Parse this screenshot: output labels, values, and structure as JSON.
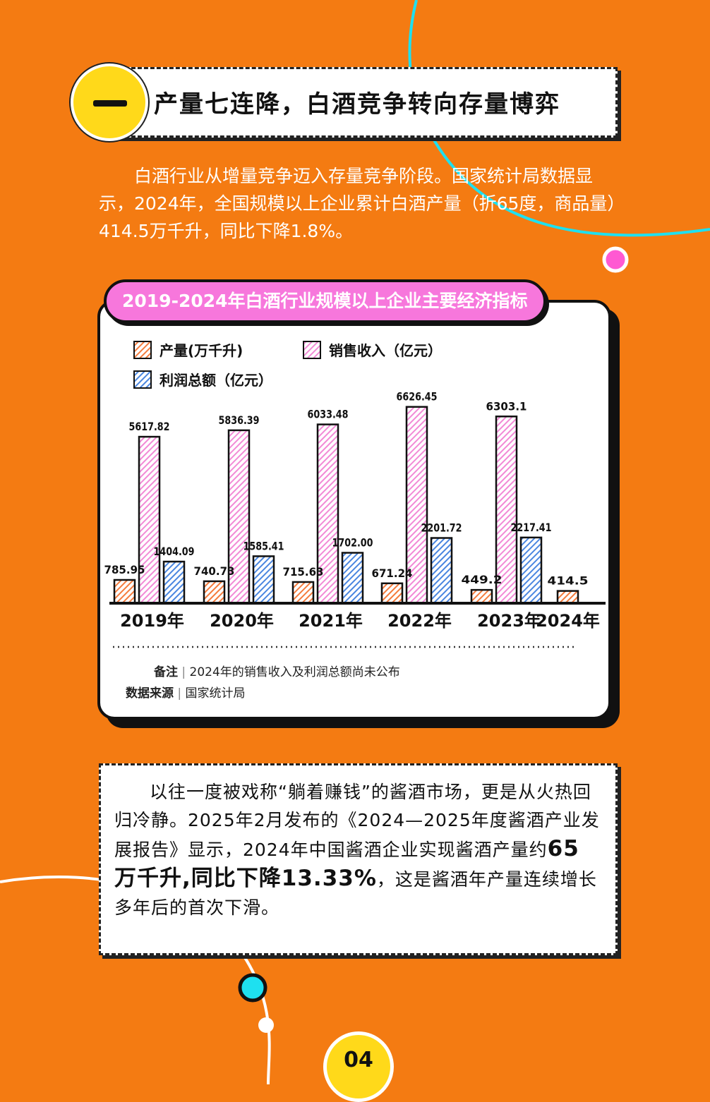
{
  "section": {
    "number_glyph": "一",
    "title": "产量七连降，白酒竞争转向存量博弈"
  },
  "intro_text": "白酒行业从增量竞争迈入存量竞争阶段。国家统计局数据显示，2024年，全国规模以上企业累计白酒产量（折65度，商品量）414.5万千升，同比下降1.8%。",
  "colors": {
    "background": "#f47b12",
    "production": "#f57b3c",
    "revenue": "#f28ad6",
    "profit": "#4a86e0",
    "accent_pink": "#f777dc",
    "accent_yellow": "#ffd91a",
    "accent_cyan": "#1ee0f0"
  },
  "chart_data": {
    "type": "bar",
    "title": "2019-2024年白酒行业规模以上企业主要经济指标",
    "categories": [
      "2019年",
      "2020年",
      "2021年",
      "2022年",
      "2023年",
      "2024年"
    ],
    "series": [
      {
        "name": "产量(万千升)",
        "values": [
          785.95,
          740.73,
          715.63,
          671.24,
          449.2,
          414.5
        ],
        "labels": [
          "785.95",
          "740.73",
          "715.63",
          "671.24",
          "449.2",
          "414.5"
        ]
      },
      {
        "name": "销售收入（亿元）",
        "values": [
          5617.82,
          5836.39,
          6033.48,
          6626.45,
          6303.1,
          null
        ],
        "labels": [
          "5617.82",
          "5836.39",
          "6033.48",
          "6626.45",
          "6303.1",
          ""
        ]
      },
      {
        "name": "利润总额（亿元）",
        "values": [
          1404.09,
          1585.41,
          1702.0,
          2201.72,
          2217.41,
          null
        ],
        "labels": [
          "1404.09",
          "1585.41",
          "1702.00",
          "2201.72",
          "2217.41",
          ""
        ]
      }
    ],
    "ylim": [
      0,
      7500
    ],
    "legend_position": "top-left",
    "grid": false,
    "notes": [
      {
        "label": "备注",
        "text": "2024年的销售收入及利润总额尚未公布"
      },
      {
        "label": "数据来源",
        "text": "国家统计局"
      }
    ]
  },
  "second_paragraph": {
    "before": "以往一度被戏称“躺着赚钱”的酱酒市场，更是从火热回归冷静。2025年2月发布的《2024—2025年度酱酒产业发展报告》显示，2024年中国酱酒企业实现酱酒产量约",
    "highlight": "65万千升,同比下降13.33%",
    "after": "，这是酱酒年产量连续增长多年后的首次下滑。"
  },
  "page_number": "04"
}
